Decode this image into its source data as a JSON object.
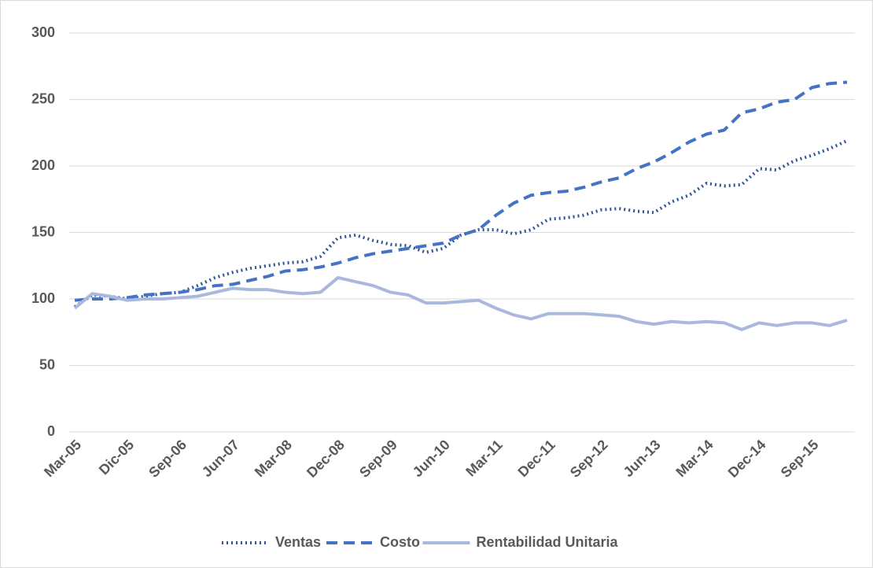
{
  "chart_data": {
    "type": "line",
    "categories": [
      "Mar-05",
      null,
      null,
      "Dic-05",
      null,
      null,
      "Sep-06",
      null,
      null,
      "Jun-07",
      null,
      null,
      "Mar-08",
      null,
      null,
      "Dec-08",
      null,
      null,
      "Sep-09",
      null,
      null,
      "Jun-10",
      null,
      null,
      "Mar-11",
      null,
      null,
      "Dec-11",
      null,
      null,
      "Sep-12",
      null,
      null,
      "Jun-13",
      null,
      null,
      "Mar-14",
      null,
      null,
      "Dec-14",
      null,
      null,
      "Sep-15",
      null,
      null
    ],
    "series": [
      {
        "name": "Ventas",
        "color": "#2f5597",
        "dash": "dotted",
        "values": [
          94,
          103,
          102,
          100,
          102,
          104,
          105,
          110,
          116,
          120,
          123,
          125,
          127,
          128,
          132,
          146,
          148,
          144,
          141,
          140,
          135,
          138,
          148,
          152,
          152,
          149,
          152,
          160,
          161,
          163,
          167,
          168,
          166,
          165,
          173,
          178,
          187,
          185,
          186,
          198,
          197,
          204,
          208,
          213,
          219
        ]
      },
      {
        "name": "Costo",
        "color": "#4472c4",
        "dash": "dashed",
        "values": [
          99,
          100,
          100,
          101,
          103,
          104,
          105,
          107,
          110,
          111,
          114,
          117,
          121,
          122,
          124,
          127,
          131,
          134,
          136,
          138,
          140,
          142,
          148,
          152,
          163,
          172,
          178,
          180,
          181,
          184,
          188,
          191,
          198,
          203,
          210,
          218,
          224,
          227,
          240,
          243,
          248,
          250,
          259,
          262,
          263
        ]
      },
      {
        "name": "Rentabilidad Unitaria",
        "color": "#a9b8dc",
        "dash": "solid",
        "values": [
          93,
          104,
          102,
          99,
          100,
          100,
          101,
          102,
          105,
          108,
          107,
          107,
          105,
          104,
          105,
          116,
          113,
          110,
          105,
          103,
          97,
          97,
          98,
          99,
          93,
          88,
          85,
          89,
          89,
          89,
          88,
          87,
          83,
          81,
          83,
          82,
          83,
          82,
          77,
          82,
          80,
          82,
          82,
          80,
          84
        ]
      }
    ],
    "ylim": [
      0,
      300
    ],
    "yticks": [
      0,
      50,
      100,
      150,
      200,
      250,
      300
    ],
    "grid": true,
    "legend": "bottom"
  }
}
